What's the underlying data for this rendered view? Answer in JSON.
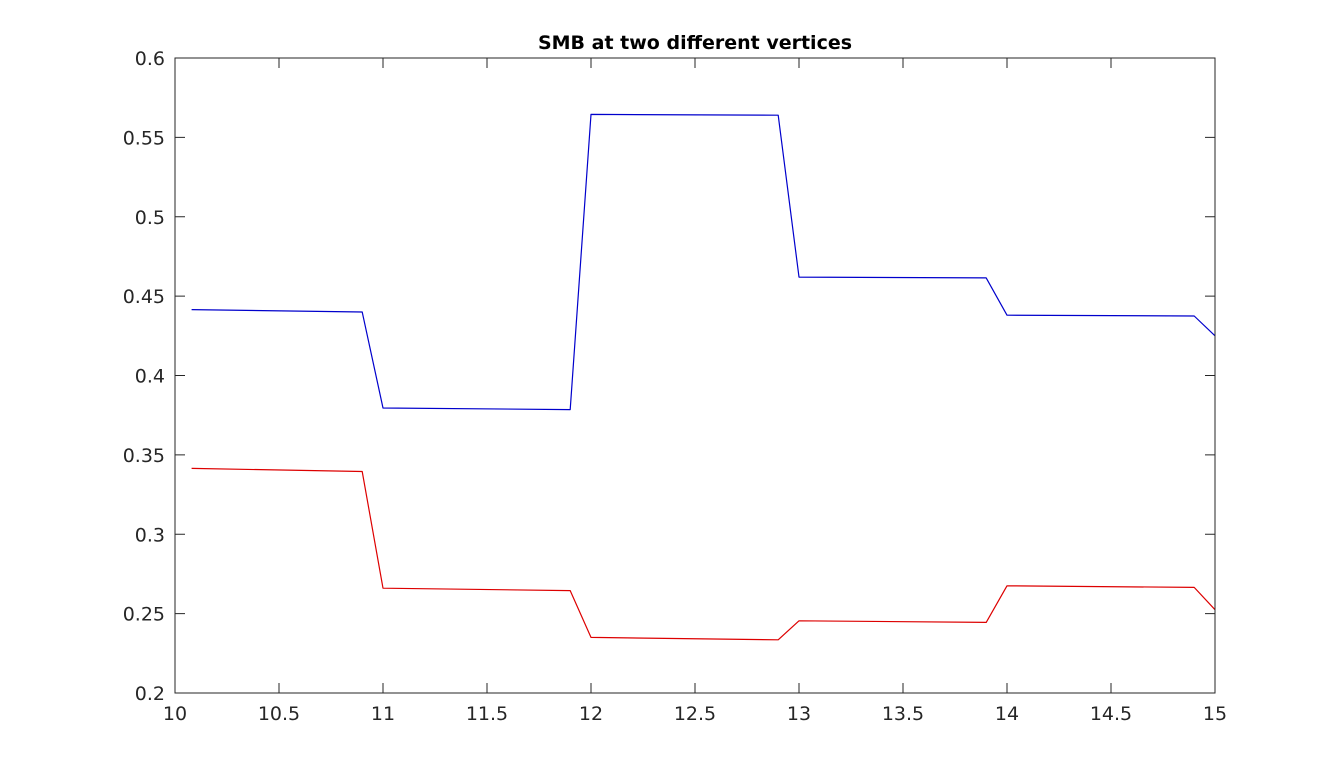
{
  "chart_data": {
    "type": "line",
    "title": "SMB at two different vertices",
    "xlabel": "",
    "ylabel": "",
    "xlim": [
      10,
      15
    ],
    "ylim": [
      0.2,
      0.6
    ],
    "xticks": [
      10,
      10.5,
      11,
      11.5,
      12,
      12.5,
      13,
      13.5,
      14,
      14.5,
      15
    ],
    "xtick_labels": [
      "10",
      "10.5",
      "11",
      "11.5",
      "12",
      "12.5",
      "13",
      "13.5",
      "14",
      "14.5",
      "15"
    ],
    "yticks": [
      0.2,
      0.25,
      0.3,
      0.35,
      0.4,
      0.45,
      0.5,
      0.55,
      0.6
    ],
    "ytick_labels": [
      "0.2",
      "0.25",
      "0.3",
      "0.35",
      "0.4",
      "0.45",
      "0.5",
      "0.55",
      "0.6"
    ],
    "grid": false,
    "legend": false,
    "series": [
      {
        "color": "#0000cc",
        "x": [
          10.08,
          10.9,
          11.0,
          11.9,
          12.0,
          12.9,
          13.0,
          13.9,
          14.0,
          14.9,
          15.0
        ],
        "y": [
          0.4415,
          0.44,
          0.3795,
          0.3785,
          0.5645,
          0.564,
          0.462,
          0.4615,
          0.438,
          0.4375,
          0.425
        ]
      },
      {
        "color": "#dd0000",
        "x": [
          10.08,
          10.9,
          11.0,
          11.9,
          12.0,
          12.9,
          13.0,
          13.9,
          14.0,
          14.9,
          15.0
        ],
        "y": [
          0.3415,
          0.3395,
          0.266,
          0.2645,
          0.235,
          0.2335,
          0.2455,
          0.2445,
          0.2675,
          0.2665,
          0.2525
        ]
      }
    ]
  }
}
